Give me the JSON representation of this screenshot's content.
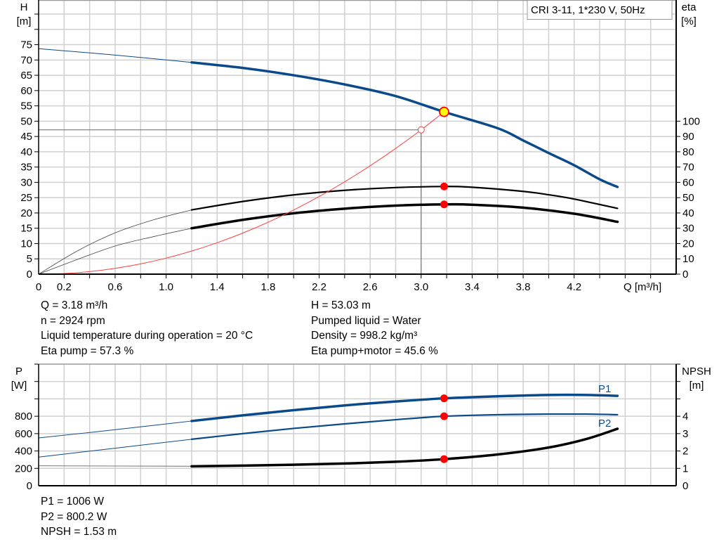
{
  "legend_box": "CRI 3-11, 1*230 V, 50Hz",
  "colors": {
    "head": "#0b4a8a",
    "efficiency": "#000000",
    "system_curve": "#ff4040",
    "duty_point": "#ff0000",
    "operating_marker_fill": "#ffff00",
    "grid": "#d0d0d0"
  },
  "chart_data": [
    {
      "type": "line",
      "xlabel": "Q [m³/h]",
      "ylabel": "H\n[m]",
      "ylabel_line1": "H",
      "ylabel_line2": "[m]",
      "y2label_line1": "eta",
      "y2label_line2": "[%]",
      "xlim": [
        0,
        5.0
      ],
      "ylim": [
        0,
        89.6
      ],
      "y2lim": [
        0,
        179.2
      ],
      "x_tick_labels": [
        "0",
        "0.2",
        "0.6",
        "1.0",
        "1.4",
        "1.8",
        "2.2",
        "2.6",
        "3.0",
        "3.4",
        "3.8",
        "4.2"
      ],
      "y_tick_labels": [
        "0",
        "5",
        "10",
        "15",
        "20",
        "25",
        "30",
        "35",
        "40",
        "45",
        "50",
        "55",
        "60",
        "65",
        "70",
        "75"
      ],
      "y2_tick_labels": [
        "0",
        "10",
        "20",
        "30",
        "40",
        "50",
        "60",
        "70",
        "80",
        "90",
        "100"
      ],
      "grid": true,
      "series": [
        {
          "axis": "H",
          "style": "head-thin",
          "points": [
            [
              0,
              73.7
            ],
            [
              0.6,
              71.6
            ],
            [
              1.2,
              69.2
            ]
          ]
        },
        {
          "axis": "H",
          "style": "head",
          "points": [
            [
              1.2,
              69.2
            ],
            [
              1.6,
              67.4
            ],
            [
              2.0,
              65.0
            ],
            [
              2.4,
              62.0
            ],
            [
              2.8,
              58.2
            ],
            [
              3.18,
              53.03
            ],
            [
              3.6,
              47.7
            ],
            [
              3.8,
              43.7
            ],
            [
              4.0,
              39.6
            ],
            [
              4.2,
              35.6
            ],
            [
              4.4,
              31.0
            ],
            [
              4.54,
              28.5
            ]
          ]
        },
        {
          "axis": "eta",
          "style": "eta-thin",
          "points": [
            [
              0,
              0
            ],
            [
              0.3,
              15
            ],
            [
              0.6,
              27
            ],
            [
              0.9,
              35.5
            ],
            [
              1.2,
              42
            ]
          ]
        },
        {
          "axis": "eta",
          "style": "eta-pump",
          "points": [
            [
              1.2,
              42
            ],
            [
              1.6,
              47.5
            ],
            [
              2.0,
              51.8
            ],
            [
              2.4,
              54.8
            ],
            [
              2.8,
              56.6
            ],
            [
              3.18,
              57.3
            ],
            [
              3.4,
              56.8
            ],
            [
              3.8,
              54.1
            ],
            [
              4.0,
              51.9
            ],
            [
              4.2,
              49.1
            ],
            [
              4.54,
              43.0
            ]
          ]
        },
        {
          "axis": "eta",
          "style": "eta-thin",
          "points": [
            [
              0,
              0
            ],
            [
              0.3,
              9.5
            ],
            [
              0.6,
              18.4
            ],
            [
              0.9,
              24.5
            ],
            [
              1.2,
              30
            ]
          ]
        },
        {
          "axis": "eta",
          "style": "eta-total",
          "points": [
            [
              1.2,
              30
            ],
            [
              1.6,
              35.5
            ],
            [
              2.0,
              39.8
            ],
            [
              2.4,
              42.8
            ],
            [
              2.8,
              44.8
            ],
            [
              3.18,
              45.6
            ],
            [
              3.4,
              45.4
            ],
            [
              3.8,
              43.5
            ],
            [
              4.2,
              39.5
            ],
            [
              4.54,
              34.2
            ]
          ]
        },
        {
          "axis": "H",
          "style": "system",
          "points": [
            [
              0,
              0
            ],
            [
              0.2,
              0.21
            ],
            [
              0.4,
              0.84
            ],
            [
              0.6,
              1.89
            ],
            [
              0.8,
              3.35
            ],
            [
              1.0,
              5.24
            ],
            [
              1.2,
              7.55
            ],
            [
              1.4,
              10.27
            ],
            [
              1.6,
              13.41
            ],
            [
              1.8,
              16.98
            ],
            [
              2.0,
              20.96
            ],
            [
              2.2,
              25.36
            ],
            [
              2.4,
              30.18
            ],
            [
              2.6,
              35.42
            ],
            [
              2.8,
              41.08
            ],
            [
              3.0,
              47.16
            ],
            [
              3.18,
              53.03
            ]
          ]
        }
      ],
      "markers": [
        {
          "axis": "eta",
          "q": 3.18,
          "value": 57.3,
          "kind": "duty"
        },
        {
          "axis": "eta",
          "q": 3.18,
          "value": 45.6,
          "kind": "duty"
        },
        {
          "axis": "H",
          "q": 3.0,
          "value": 47.16,
          "kind": "open"
        },
        {
          "axis": "H",
          "q": 3.18,
          "value": 53.03,
          "kind": "operating"
        }
      ],
      "reference_lines": {
        "q": 3.0,
        "h": 47.16
      }
    },
    {
      "type": "line",
      "xlabel": "",
      "ylabel_line1": "P",
      "ylabel_line2": "[W]",
      "y2label_line1": "NPSH",
      "y2label_line2": "[m]",
      "xlim": [
        0,
        5.0
      ],
      "ylim": [
        0,
        1400
      ],
      "y2lim": [
        0,
        7
      ],
      "y_tick_labels": [
        "0",
        "200",
        "400",
        "600",
        "800"
      ],
      "y2_tick_labels": [
        "0",
        "1",
        "2",
        "3",
        "4"
      ],
      "grid": true,
      "series_labels": [
        "P1",
        "P2"
      ],
      "series": [
        {
          "axis": "P",
          "style": "p-thin",
          "points": [
            [
              0,
              550
            ],
            [
              0.6,
              645
            ],
            [
              1.2,
              745
            ]
          ]
        },
        {
          "axis": "P",
          "name": "P1",
          "style": "p1",
          "points": [
            [
              1.2,
              745
            ],
            [
              1.6,
              810
            ],
            [
              2.0,
              870
            ],
            [
              2.4,
              925
            ],
            [
              2.8,
              970
            ],
            [
              3.18,
              1006
            ],
            [
              3.6,
              1030
            ],
            [
              4.0,
              1045
            ],
            [
              4.3,
              1045
            ],
            [
              4.54,
              1035
            ]
          ]
        },
        {
          "axis": "P",
          "style": "p-thin",
          "points": [
            [
              0,
              330
            ],
            [
              0.6,
              432
            ],
            [
              1.2,
              535
            ]
          ]
        },
        {
          "axis": "P",
          "name": "P2",
          "style": "p2",
          "points": [
            [
              1.2,
              535
            ],
            [
              1.6,
              600
            ],
            [
              2.0,
              660
            ],
            [
              2.4,
              712
            ],
            [
              2.8,
              760
            ],
            [
              3.18,
              800.2
            ],
            [
              3.6,
              818
            ],
            [
              4.0,
              825
            ],
            [
              4.3,
              825
            ],
            [
              4.54,
              818
            ]
          ]
        },
        {
          "axis": "NPSH",
          "style": "npsh-thin",
          "points": [
            [
              0,
              1.15
            ],
            [
              1.2,
              1.12
            ]
          ]
        },
        {
          "axis": "NPSH",
          "style": "npsh",
          "points": [
            [
              1.2,
              1.12
            ],
            [
              1.6,
              1.16
            ],
            [
              2.0,
              1.21
            ],
            [
              2.4,
              1.28
            ],
            [
              2.8,
              1.38
            ],
            [
              3.18,
              1.53
            ],
            [
              3.6,
              1.8
            ],
            [
              4.0,
              2.2
            ],
            [
              4.3,
              2.7
            ],
            [
              4.54,
              3.28
            ]
          ]
        }
      ],
      "markers": [
        {
          "axis": "P",
          "q": 3.18,
          "value": 1006,
          "kind": "duty"
        },
        {
          "axis": "P",
          "q": 3.18,
          "value": 800.2,
          "kind": "duty"
        },
        {
          "axis": "NPSH",
          "q": 3.18,
          "value": 1.53,
          "kind": "duty"
        }
      ]
    }
  ],
  "info_left": [
    "Q = 3.18 m³/h",
    "n = 2924 rpm",
    "Liquid temperature during operation = 20 °C",
    "Eta pump = 57.3 %"
  ],
  "info_right": [
    "H = 53.03 m",
    "Pumped liquid = Water",
    "Density = 998.2 kg/m³",
    "Eta pump+motor = 45.6 %"
  ],
  "info_bottom": [
    "P1 = 1006 W",
    "P2 = 800.2 W",
    "NPSH = 1.53 m"
  ]
}
